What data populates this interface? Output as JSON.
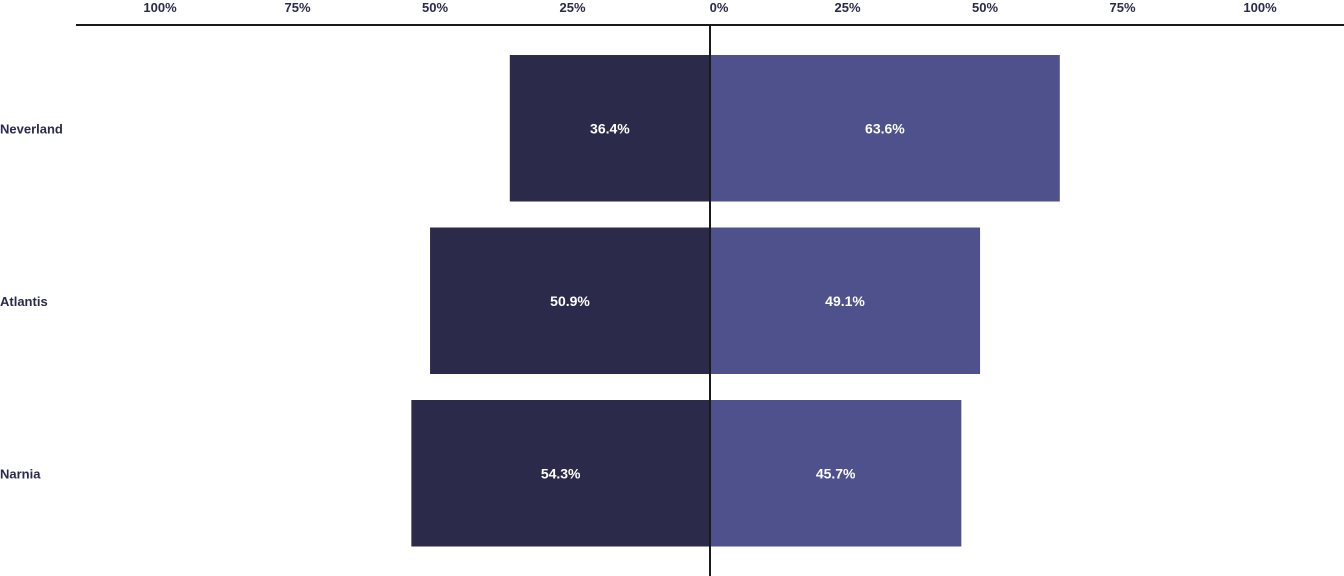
{
  "chart_data": {
    "type": "bar",
    "orientation": "horizontal-diverging",
    "categories": [
      "Neverland",
      "Atlantis",
      "Narnia"
    ],
    "series": [
      {
        "values": [
          36.4,
          50.9,
          54.3
        ],
        "labels": [
          "36.4%",
          "50.9%",
          "54.3%"
        ],
        "direction": "left",
        "color": "#2c2a4a"
      },
      {
        "values": [
          63.6,
          49.1,
          45.7
        ],
        "labels": [
          "63.6%",
          "49.1%",
          "45.7%"
        ],
        "direction": "right",
        "color": "#4f518c"
      }
    ],
    "axis": {
      "position": "top",
      "range": [
        -100,
        100
      ],
      "ticks": [
        -100,
        -75,
        -50,
        -25,
        0,
        25,
        50,
        75,
        100
      ],
      "tick_labels": [
        "100%",
        "75%",
        "50%",
        "25%",
        "0%",
        "25%",
        "50%",
        "75%",
        "100%"
      ]
    },
    "grid": false,
    "legend": "none",
    "text_color": "#2b2a4a",
    "axis_color": "#1a1a1a"
  }
}
